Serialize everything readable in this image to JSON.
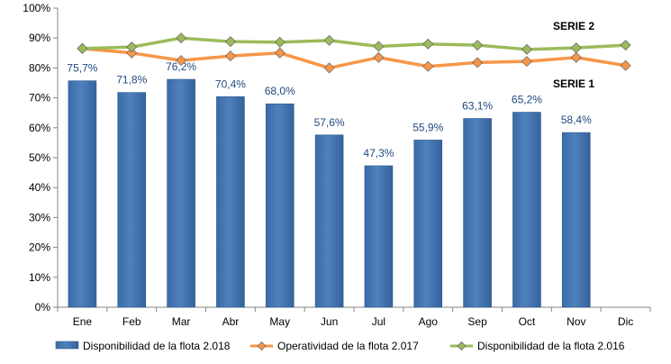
{
  "chart_data": {
    "type": "bar",
    "categories": [
      "Ene",
      "Feb",
      "Mar",
      "Abr",
      "May",
      "Jun",
      "Jul",
      "Ago",
      "Sep",
      "Oct",
      "Nov",
      "Dic"
    ],
    "ylim": [
      0,
      100
    ],
    "yticks": [
      0,
      10,
      20,
      30,
      40,
      50,
      60,
      70,
      80,
      90,
      100
    ],
    "y_tick_suffix": "%",
    "grid": false,
    "legend_position": "bottom",
    "series": [
      {
        "name": "Disponibilidad de la flota 2.018",
        "type": "bar",
        "color": "#4F81BD",
        "values": [
          75.7,
          71.8,
          76.2,
          70.4,
          68.0,
          57.6,
          47.3,
          55.9,
          63.1,
          65.2,
          58.4,
          null
        ],
        "data_labels": [
          "75,7%",
          "71,8%",
          "76,2%",
          "70,4%",
          "68,0%",
          "57,6%",
          "47,3%",
          "55,9%",
          "63,1%",
          "65,2%",
          "58,4%",
          ""
        ]
      },
      {
        "name": "Operatividad de la flota 2.017",
        "type": "line",
        "marker": "diamond",
        "color": "#F79646",
        "values": [
          86.5,
          85.0,
          82.5,
          84.0,
          85.0,
          80.0,
          83.5,
          80.5,
          81.8,
          82.2,
          83.5,
          80.8
        ]
      },
      {
        "name": "Disponibilidad de la flota 2.016",
        "type": "line",
        "marker": "diamond",
        "color": "#9BBB59",
        "values": [
          86.5,
          87.0,
          90.0,
          88.8,
          88.6,
          89.2,
          87.2,
          88.0,
          87.6,
          86.2,
          86.7,
          87.6
        ]
      }
    ],
    "annotations": [
      {
        "text": "SERIE 2",
        "anchor_series": 2
      },
      {
        "text": "SERIE 1",
        "anchor_series": 0
      }
    ]
  }
}
